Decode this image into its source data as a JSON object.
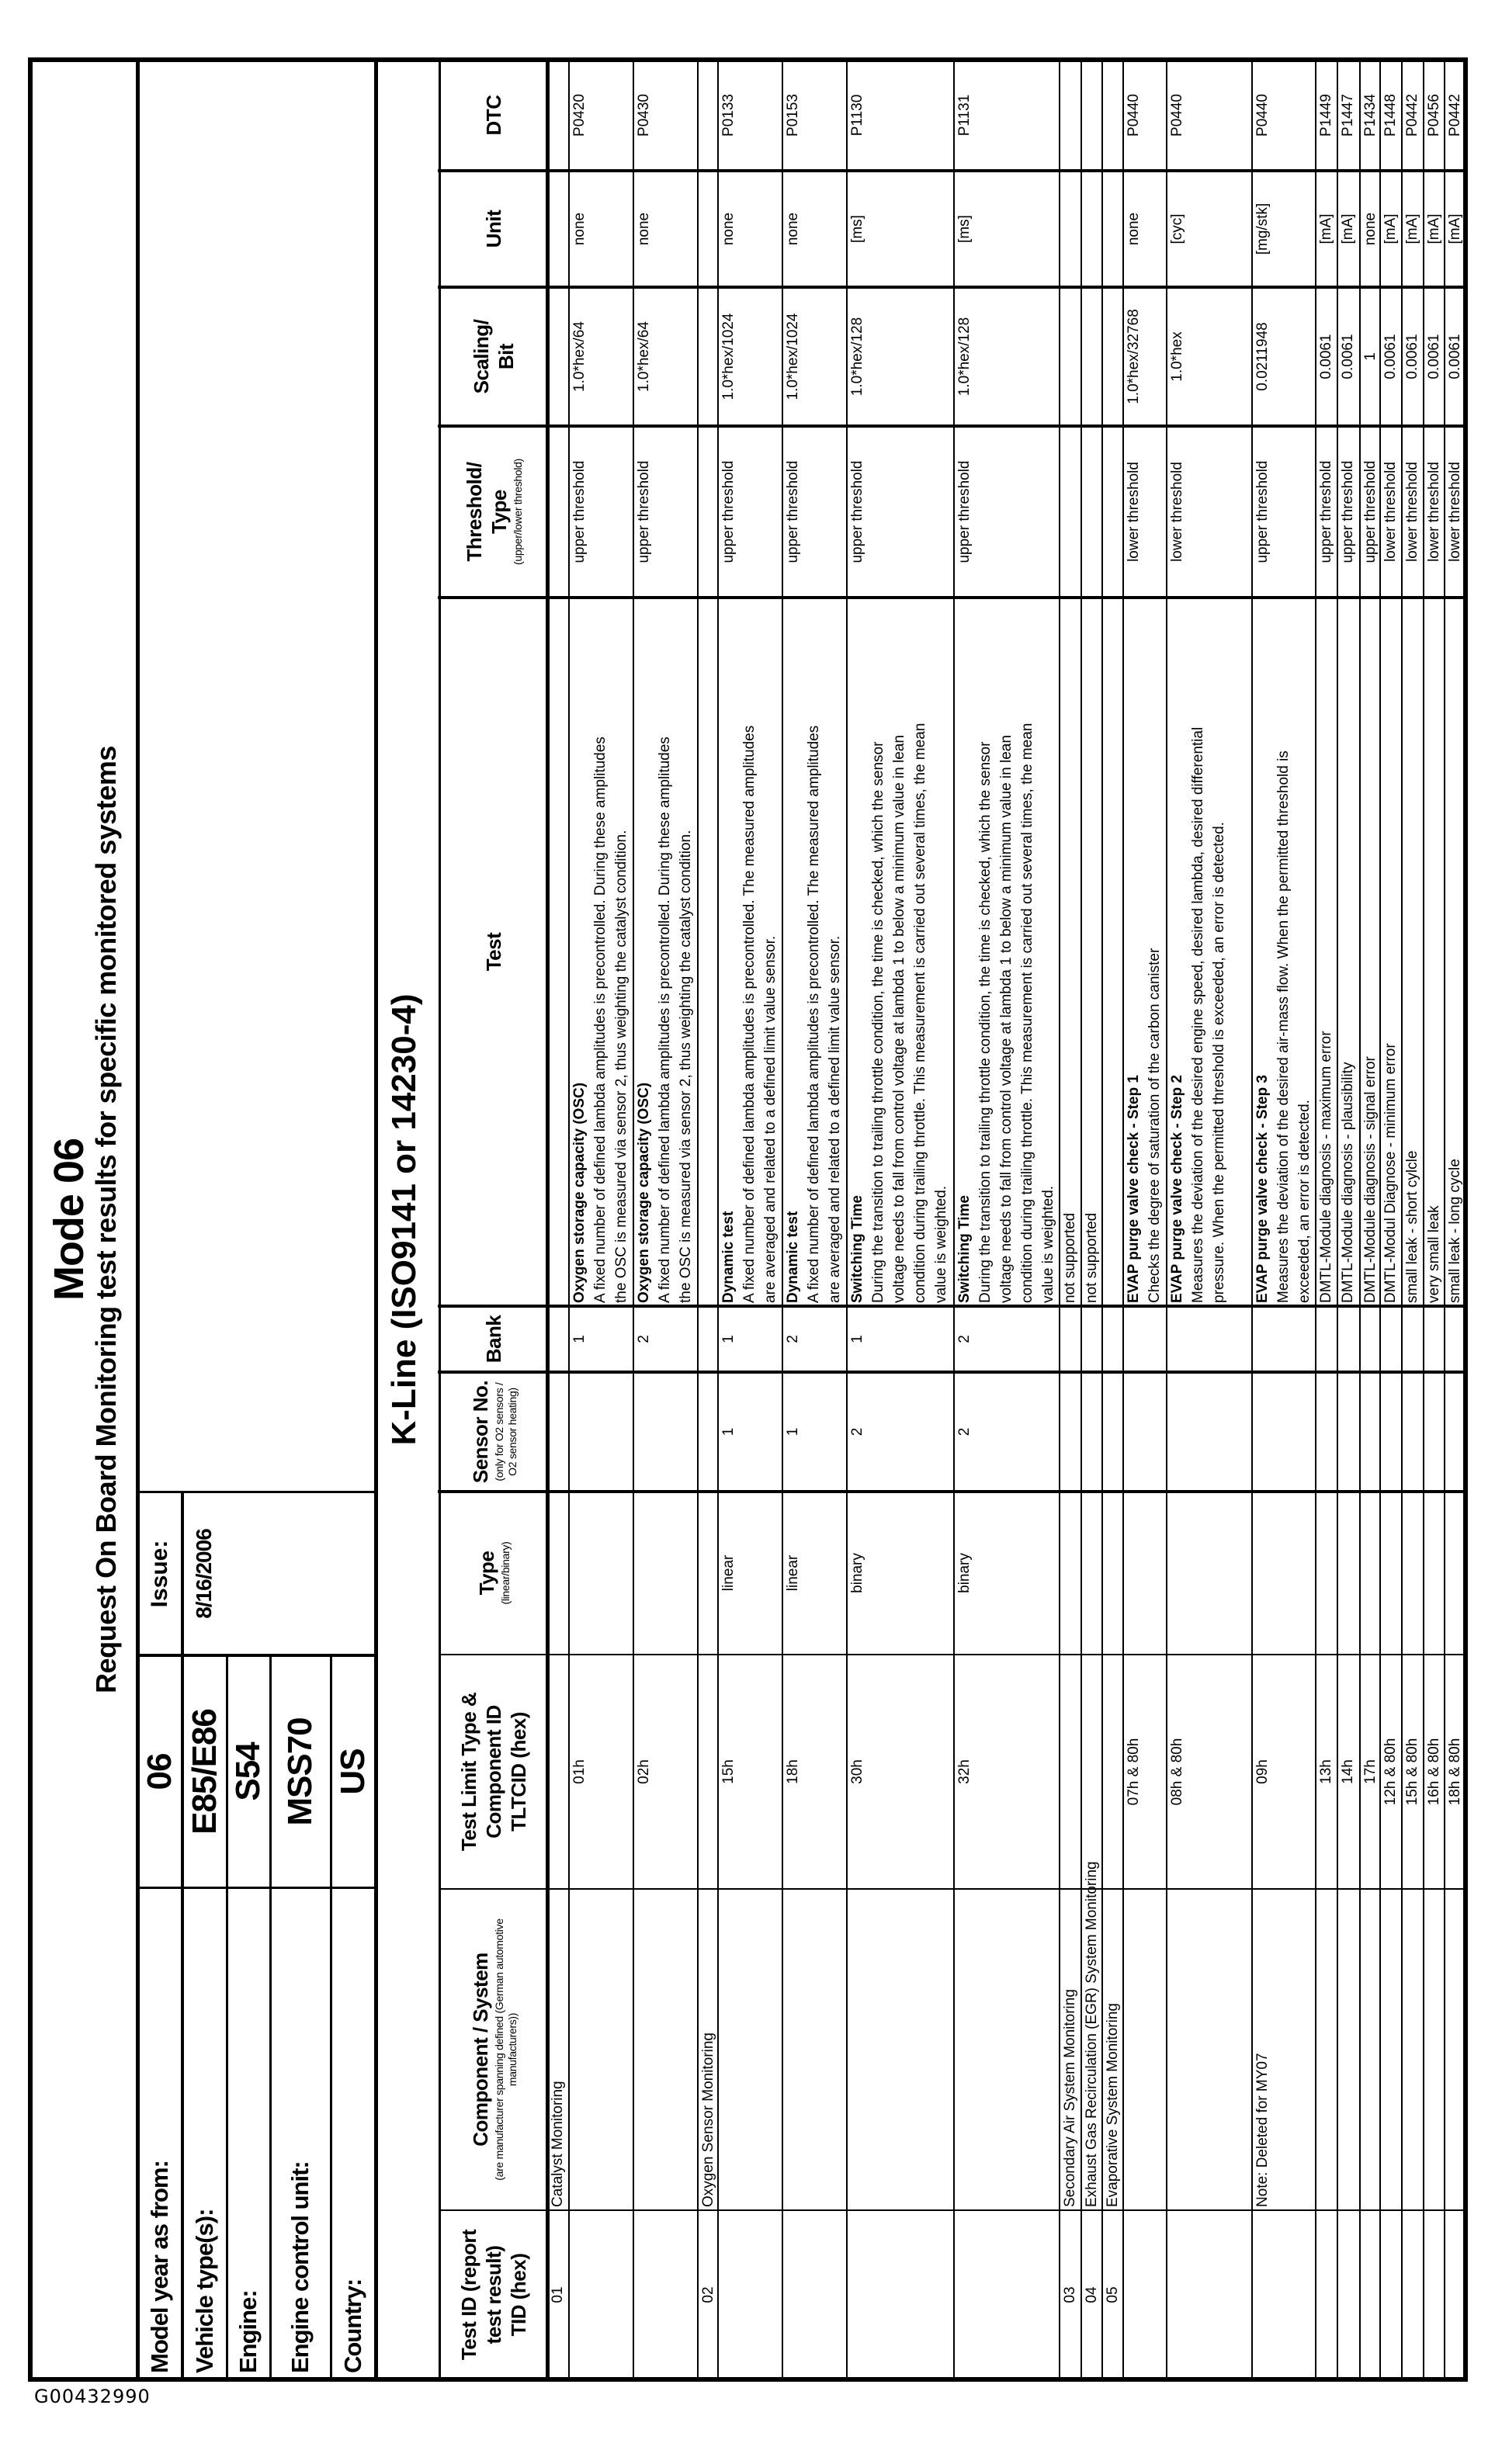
{
  "doc_id": "G00432990",
  "title": "Mode 06",
  "subtitle": "Request On Board Monitoring test results for specific monitored systems",
  "info": {
    "rows": [
      {
        "label": "Model year as from:",
        "value": "06"
      },
      {
        "label": "Vehicle type(s):",
        "value": "E85/E86"
      },
      {
        "label": "Engine:",
        "value": "S54"
      },
      {
        "label": "Engine control unit:",
        "value": "MSS70"
      },
      {
        "label": "Country:",
        "value": "US"
      }
    ],
    "issue_label": "Issue:",
    "issue_date": "8/16/2006"
  },
  "protocol": "K-Line (ISO9141 or 14230-4)",
  "columns": [
    {
      "label": [
        "Test ID (report",
        "test result)",
        "TID (hex)"
      ]
    },
    {
      "label": [
        "Component / System"
      ],
      "sub": "(are manufacturer spanning defined (German automotive manufacturers))"
    },
    {
      "label": [
        "Test Limit Type &",
        "Component ID",
        "TLTCID (hex)"
      ]
    },
    {
      "label": [
        "Type"
      ],
      "sub": "(linear/binary)"
    },
    {
      "label": [
        "Sensor No."
      ],
      "sub": "(only for O2 sensors / O2 sensor heating)"
    },
    {
      "label": [
        "Bank"
      ]
    },
    {
      "label": [
        "Test"
      ]
    },
    {
      "label": [
        "Threshold/",
        "Type"
      ],
      "sub": "(upper/lower threshold)"
    },
    {
      "label": [
        "Scaling/",
        "Bit"
      ]
    },
    {
      "label": [
        "Unit"
      ]
    },
    {
      "label": [
        "DTC"
      ]
    }
  ],
  "rows": [
    {
      "tid": "01",
      "component": "Catalyst Monitoring"
    },
    {
      "tltcid": "01h",
      "bank": "1",
      "test_title": "Oxygen storage capacity (OSC)",
      "test_lines": [
        "A fixed number of defined lambda amplitudes is precontrolled. During these amplitudes",
        "the OSC is measured via sensor 2, thus weighting the catalyst condition."
      ],
      "threshold": "upper threshold",
      "scaling": "1.0*hex/64",
      "unit": "none",
      "dtc": "P0420"
    },
    {
      "tltcid": "02h",
      "bank": "2",
      "test_title": "Oxygen storage capacity (OSC)",
      "test_lines": [
        "A fixed number of defined lambda amplitudes is precontrolled. During these amplitudes",
        "the OSC is measured via sensor 2, thus weighting the catalyst condition."
      ],
      "threshold": "upper threshold",
      "scaling": "1.0*hex/64",
      "unit": "none",
      "dtc": "P0430"
    },
    {
      "tid": "02",
      "component": "Oxygen Sensor Monitoring"
    },
    {
      "tltcid": "15h",
      "type": "linear",
      "sensor": "1",
      "bank": "1",
      "test_title": "Dynamic test",
      "test_lines": [
        "A fixed number of defined lambda amplitudes is precontrolled. The measured amplitudes",
        "are averaged and related to a defined limit value sensor."
      ],
      "threshold": "upper threshold",
      "scaling": "1.0*hex/1024",
      "unit": "none",
      "dtc": "P0133"
    },
    {
      "tltcid": "18h",
      "type": "linear",
      "sensor": "1",
      "bank": "2",
      "test_title": "Dynamic test",
      "test_lines": [
        "A fixed number of defined lambda amplitudes is precontrolled. The measured amplitudes",
        "are averaged and related to a defined limit value sensor."
      ],
      "threshold": "upper threshold",
      "scaling": "1.0*hex/1024",
      "unit": "none",
      "dtc": "P0153"
    },
    {
      "tltcid": "30h",
      "type": "binary",
      "sensor": "2",
      "bank": "1",
      "test_title": "Switching Time",
      "test_lines": [
        "During the transition to trailing throttle condition, the time is checked, which the sensor",
        "voltage needs to fall from control voltage at lambda 1 to below a minimum value in lean",
        "condition during trailing throttle. This measurement is carried out several times, the mean",
        "value is weighted."
      ],
      "threshold": "upper threshold",
      "scaling": "1.0*hex/128",
      "unit": "[ms]",
      "dtc": "P1130"
    },
    {
      "tltcid": "32h",
      "type": "binary",
      "sensor": "2",
      "bank": "2",
      "test_title": "Switching Time",
      "test_lines": [
        "During the transition to trailing throttle condition, the time is checked, which the sensor",
        "voltage needs to fall from control voltage at lambda 1 to below a minimum value in lean",
        "condition during trailing throttle. This measurement is carried out several times, the mean",
        "value is weighted."
      ],
      "threshold": "upper threshold",
      "scaling": "1.0*hex/128",
      "unit": "[ms]",
      "dtc": "P1131"
    },
    {
      "tid": "03",
      "component": "Secondary Air System Monitoring",
      "test_lines": [
        "not supported"
      ]
    },
    {
      "tid": "04",
      "component": "Exhaust Gas Recirculation (EGR) System Monitoring",
      "test_lines": [
        "not supported"
      ]
    },
    {
      "tid": "05",
      "component": "Evaporative System Monitoring"
    },
    {
      "tltcid": "07h & 80h",
      "test_title": "EVAP purge valve check - Step 1",
      "test_lines": [
        "Checks the degree of saturation of the carbon canister"
      ],
      "threshold": "lower threshold",
      "scaling": "1.0*hex/32768",
      "unit": "none",
      "dtc": "P0440"
    },
    {
      "tltcid": "08h & 80h",
      "test_title": "EVAP purge valve check - Step 2",
      "test_lines": [
        "Measures the deviation of the desired engine speed, desired lambda, desired differential",
        "pressure. When the permitted threshold is exceeded, an error is detected."
      ],
      "threshold": "lower threshold",
      "scaling": "1.0*hex",
      "unit": "[cyc]",
      "dtc": "P0440"
    },
    {
      "component": "Note: Deleted for MY07",
      "tltcid": "09h",
      "test_title": "EVAP purge valve check - Step 3",
      "test_lines": [
        "Measures the deviation of the desired air-mass flow. When the permitted threshold is",
        "exceeded, an error is detected."
      ],
      "threshold": "upper threshold",
      "scaling": "0.0211948",
      "unit": "[mg/stk]",
      "dtc": "P0440"
    },
    {
      "tltcid": "13h",
      "test_lines": [
        "DMTL-Module diagnosis - maximum error"
      ],
      "threshold": "upper threshold",
      "scaling": "0.0061",
      "unit": "[mA]",
      "dtc": "P1449"
    },
    {
      "tltcid": "14h",
      "test_lines": [
        "DMTL-Module diagnosis - plausibility"
      ],
      "threshold": "upper threshold",
      "scaling": "0.0061",
      "unit": "[mA]",
      "dtc": "P1447"
    },
    {
      "tltcid": "17h",
      "test_lines": [
        "DMTL-Module diagnosis - signal error"
      ],
      "threshold": "upper threshold",
      "scaling": "1",
      "unit": "none",
      "dtc": "P1434"
    },
    {
      "tltcid": "12h & 80h",
      "test_lines": [
        "DMTL-Modul Diagnose - minimum error"
      ],
      "threshold": "lower threshold",
      "scaling": "0.0061",
      "unit": "[mA]",
      "dtc": "P1448"
    },
    {
      "tltcid": "15h & 80h",
      "test_lines": [
        "small leak - short cylcle"
      ],
      "threshold": "lower threshold",
      "scaling": "0.0061",
      "unit": "[mA]",
      "dtc": "P0442"
    },
    {
      "tltcid": "16h & 80h",
      "test_lines": [
        "very small leak"
      ],
      "threshold": "lower threshold",
      "scaling": "0.0061",
      "unit": "[mA]",
      "dtc": "P0456"
    },
    {
      "tltcid": "18h & 80h",
      "test_lines": [
        "small leak - long cycle"
      ],
      "threshold": "lower threshold",
      "scaling": "0.0061",
      "unit": "[mA]",
      "dtc": "P0442"
    }
  ]
}
